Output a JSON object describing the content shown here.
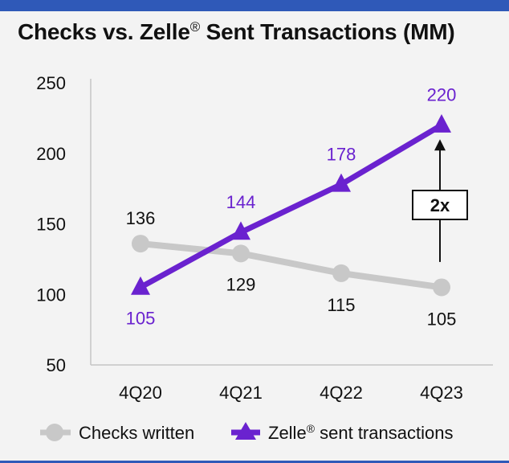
{
  "title": {
    "main": "Checks vs. Zelle",
    "reg": "®",
    "rest": " Sent Transactions (MM)"
  },
  "chart_data": {
    "type": "line",
    "title": "Checks vs. Zelle® Sent Transactions (MM)",
    "categories": [
      "4Q20",
      "4Q21",
      "4Q22",
      "4Q23"
    ],
    "series": [
      {
        "name": "Checks written",
        "values": [
          136,
          129,
          115,
          105
        ],
        "color": "#c8c8c8",
        "marker": "circle",
        "label_color": "#111111"
      },
      {
        "name": "Zelle® sent transactions",
        "values": [
          105,
          144,
          178,
          220
        ],
        "color": "#6a22cf",
        "marker": "triangle",
        "label_color": "#6a22cf"
      }
    ],
    "ylim": [
      50,
      250
    ],
    "yticks": [
      "250",
      "200",
      "150",
      "100",
      "50"
    ],
    "ytick_values": [
      250,
      200,
      150,
      100,
      50
    ],
    "grid": false,
    "legend_position": "bottom",
    "annotation": {
      "text": "2x",
      "category": "4Q23",
      "from_value": 123,
      "to_value": 210
    }
  }
}
